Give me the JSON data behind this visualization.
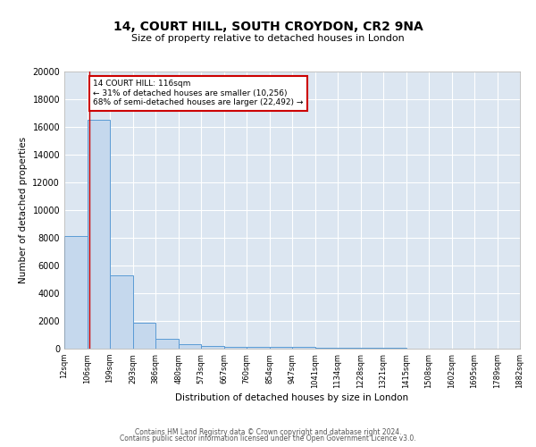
{
  "title1": "14, COURT HILL, SOUTH CROYDON, CR2 9NA",
  "title2": "Size of property relative to detached houses in London",
  "xlabel": "Distribution of detached houses by size in London",
  "ylabel": "Number of detached properties",
  "footer1": "Contains HM Land Registry data © Crown copyright and database right 2024.",
  "footer2": "Contains public sector information licensed under the Open Government Licence v3.0.",
  "bin_edges": [
    12,
    106,
    199,
    293,
    386,
    480,
    573,
    667,
    760,
    854,
    947,
    1041,
    1134,
    1228,
    1321,
    1415,
    1508,
    1602,
    1695,
    1789,
    1882
  ],
  "bin_labels": [
    "12sqm",
    "106sqm",
    "199sqm",
    "293sqm",
    "386sqm",
    "480sqm",
    "573sqm",
    "667sqm",
    "760sqm",
    "854sqm",
    "947sqm",
    "1041sqm",
    "1134sqm",
    "1228sqm",
    "1321sqm",
    "1415sqm",
    "1508sqm",
    "1602sqm",
    "1695sqm",
    "1789sqm",
    "1882sqm"
  ],
  "bar_heights": [
    8100,
    16500,
    5300,
    1850,
    700,
    300,
    200,
    150,
    150,
    150,
    100,
    80,
    60,
    50,
    40,
    30,
    20,
    15,
    10,
    8
  ],
  "bar_color": "#c5d8ed",
  "bar_edge_color": "#5b9bd5",
  "bg_color": "#dce6f1",
  "grid_color": "#ffffff",
  "property_line_x": 116,
  "property_line_color": "#cc0000",
  "annotation_line1": "14 COURT HILL: 116sqm",
  "annotation_line2": "← 31% of detached houses are smaller (10,256)",
  "annotation_line3": "68% of semi-detached houses are larger (22,492) →",
  "annotation_box_color": "#cc0000",
  "ylim": [
    0,
    20000
  ],
  "yticks": [
    0,
    2000,
    4000,
    6000,
    8000,
    10000,
    12000,
    14000,
    16000,
    18000,
    20000
  ],
  "ytick_labels": [
    "0",
    "2000",
    "4000",
    "6000",
    "8000",
    "10000",
    "12000",
    "14000",
    "16000",
    "18000",
    "20000"
  ]
}
